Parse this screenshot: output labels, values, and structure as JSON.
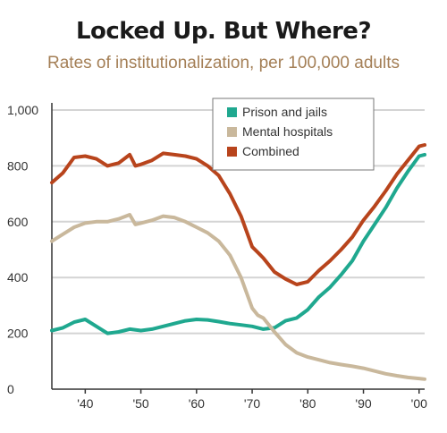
{
  "colors": {
    "prison": "#1fa88f",
    "mental": "#c9b89c",
    "combined": "#b8441c",
    "grid": "#d4d4d4",
    "axis": "#333333",
    "title": "#1a1a1a",
    "subtitle": "#a47f56"
  },
  "chart_data": {
    "type": "line",
    "title": "Locked Up. But Where?",
    "subtitle": "Rates of institutionalization, per 100,000 adults",
    "xlabel": "",
    "ylabel": "",
    "xlim": [
      1934,
      2001
    ],
    "ylim": [
      0,
      1000
    ],
    "grid": true,
    "legend_position": "top-right",
    "x_ticks": [
      1940,
      1950,
      1960,
      1970,
      1980,
      1990,
      2000
    ],
    "x_tick_labels": [
      "'40",
      "'50",
      "'60",
      "'70",
      "'80",
      "'90",
      "'00"
    ],
    "y_ticks": [
      0,
      200,
      400,
      600,
      800,
      1000
    ],
    "y_tick_labels": [
      "0",
      "200",
      "400",
      "600",
      "800",
      "1,000"
    ],
    "series": [
      {
        "name": "Prison and jails",
        "color_key": "prison",
        "points": [
          [
            1934,
            210
          ],
          [
            1936,
            220
          ],
          [
            1938,
            240
          ],
          [
            1940,
            250
          ],
          [
            1942,
            225
          ],
          [
            1944,
            200
          ],
          [
            1946,
            205
          ],
          [
            1948,
            215
          ],
          [
            1950,
            210
          ],
          [
            1952,
            215
          ],
          [
            1954,
            225
          ],
          [
            1956,
            235
          ],
          [
            1958,
            245
          ],
          [
            1960,
            250
          ],
          [
            1962,
            248
          ],
          [
            1964,
            242
          ],
          [
            1966,
            235
          ],
          [
            1968,
            230
          ],
          [
            1970,
            225
          ],
          [
            1972,
            215
          ],
          [
            1974,
            220
          ],
          [
            1976,
            245
          ],
          [
            1978,
            255
          ],
          [
            1980,
            285
          ],
          [
            1982,
            330
          ],
          [
            1984,
            365
          ],
          [
            1986,
            410
          ],
          [
            1988,
            460
          ],
          [
            1990,
            530
          ],
          [
            1992,
            590
          ],
          [
            1994,
            650
          ],
          [
            1996,
            720
          ],
          [
            1998,
            780
          ],
          [
            2000,
            835
          ],
          [
            2001,
            840
          ]
        ]
      },
      {
        "name": "Mental hospitals",
        "color_key": "mental",
        "points": [
          [
            1934,
            530
          ],
          [
            1936,
            555
          ],
          [
            1938,
            580
          ],
          [
            1940,
            595
          ],
          [
            1942,
            600
          ],
          [
            1944,
            600
          ],
          [
            1946,
            610
          ],
          [
            1948,
            625
          ],
          [
            1949,
            590
          ],
          [
            1950,
            595
          ],
          [
            1952,
            605
          ],
          [
            1954,
            620
          ],
          [
            1956,
            615
          ],
          [
            1958,
            600
          ],
          [
            1960,
            580
          ],
          [
            1962,
            560
          ],
          [
            1964,
            530
          ],
          [
            1966,
            480
          ],
          [
            1968,
            400
          ],
          [
            1970,
            290
          ],
          [
            1971,
            265
          ],
          [
            1972,
            255
          ],
          [
            1974,
            205
          ],
          [
            1976,
            160
          ],
          [
            1978,
            130
          ],
          [
            1980,
            115
          ],
          [
            1982,
            105
          ],
          [
            1984,
            95
          ],
          [
            1986,
            88
          ],
          [
            1988,
            82
          ],
          [
            1990,
            75
          ],
          [
            1992,
            65
          ],
          [
            1994,
            55
          ],
          [
            1996,
            48
          ],
          [
            1998,
            42
          ],
          [
            2000,
            38
          ],
          [
            2001,
            36
          ]
        ]
      },
      {
        "name": "Combined",
        "color_key": "combined",
        "points": [
          [
            1934,
            740
          ],
          [
            1936,
            775
          ],
          [
            1938,
            830
          ],
          [
            1940,
            835
          ],
          [
            1942,
            825
          ],
          [
            1944,
            800
          ],
          [
            1946,
            810
          ],
          [
            1948,
            840
          ],
          [
            1949,
            800
          ],
          [
            1950,
            805
          ],
          [
            1952,
            820
          ],
          [
            1954,
            845
          ],
          [
            1956,
            840
          ],
          [
            1958,
            835
          ],
          [
            1960,
            825
          ],
          [
            1962,
            800
          ],
          [
            1964,
            765
          ],
          [
            1966,
            700
          ],
          [
            1968,
            620
          ],
          [
            1970,
            510
          ],
          [
            1971,
            490
          ],
          [
            1972,
            470
          ],
          [
            1974,
            420
          ],
          [
            1976,
            395
          ],
          [
            1978,
            375
          ],
          [
            1980,
            385
          ],
          [
            1982,
            425
          ],
          [
            1984,
            460
          ],
          [
            1986,
            500
          ],
          [
            1988,
            545
          ],
          [
            1990,
            605
          ],
          [
            1992,
            655
          ],
          [
            1994,
            710
          ],
          [
            1996,
            770
          ],
          [
            1998,
            820
          ],
          [
            2000,
            870
          ],
          [
            2001,
            875
          ]
        ]
      }
    ]
  }
}
